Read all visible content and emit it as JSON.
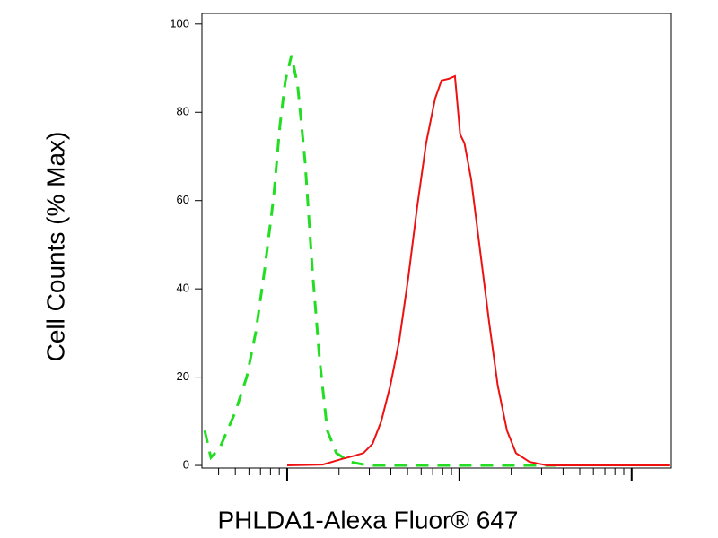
{
  "chart_data": {
    "type": "line",
    "xlabel": "PHLDA1-Alexa Fluor® 647",
    "ylabel": "Cell Counts (% Max)",
    "xscale": "log",
    "xlim": [
      3.2,
      1700
    ],
    "xticks": [
      10,
      100,
      1000
    ],
    "xminorticks": [
      4,
      5,
      6,
      7,
      8,
      9,
      20,
      30,
      40,
      50,
      60,
      70,
      80,
      90,
      200,
      300,
      400,
      500,
      600,
      700,
      800,
      900
    ],
    "ylim": [
      -0.6,
      102.4
    ],
    "yticks": [
      0,
      20,
      40,
      60,
      80,
      100
    ],
    "series": [
      {
        "color": "#22dd22",
        "dashed": true,
        "x": [
          3.32,
          3.61,
          4.06,
          4.99,
          5.83,
          6.58,
          7.41,
          8.35,
          9.08,
          9.77,
          10.6,
          11.5,
          12.7,
          14.0,
          15.4,
          17.1,
          19.3,
          23.2,
          29.4,
          47.5,
          110,
          226,
          365
        ],
        "values": [
          7.9,
          1.8,
          3.9,
          12.0,
          20.1,
          30.3,
          44.5,
          60.8,
          77.0,
          87.2,
          92.9,
          86.2,
          68.9,
          44.5,
          24.2,
          7.9,
          2.8,
          0.8,
          0,
          0,
          0,
          0,
          0
        ]
      },
      {
        "color": "#ee1111",
        "dashed": false,
        "x": [
          10,
          16.1,
          20.5,
          24.6,
          27.7,
          31.3,
          35.2,
          39.7,
          44.8,
          50.5,
          56.9,
          64.1,
          72.3,
          78.7,
          86.6,
          94.2,
          101,
          107,
          117,
          132,
          149,
          167,
          189,
          213,
          255,
          324,
          953,
          1656
        ],
        "values": [
          0,
          0.2,
          1.4,
          2.2,
          2.8,
          4.9,
          10.0,
          18.1,
          28.3,
          42.5,
          58.7,
          73.0,
          83.1,
          87.2,
          87.6,
          88.2,
          75.0,
          73.0,
          64.8,
          48.6,
          32.3,
          18.1,
          7.9,
          2.8,
          0.8,
          0,
          0,
          0
        ]
      }
    ]
  }
}
